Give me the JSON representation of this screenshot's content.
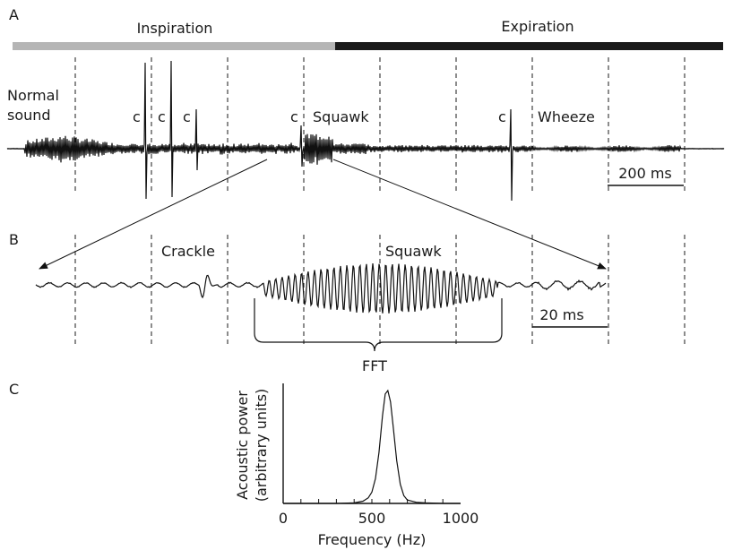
{
  "panels": {
    "a": "A",
    "b": "B",
    "c": "C"
  },
  "phases": {
    "inspiration": {
      "label": "Inspiration",
      "color": "#b5b5b5"
    },
    "expiration": {
      "label": "Expiration",
      "color": "#1a1a1a"
    }
  },
  "labels_a": {
    "normal_line1": "Normal",
    "normal_line2": "sound",
    "crackle_marks": [
      "c",
      "c",
      "c",
      "c",
      "c"
    ],
    "squawk": "Squawk",
    "wheeze": "Wheeze"
  },
  "scalebar_a": "200 ms",
  "labels_b": {
    "crackle": "Crackle",
    "squawk": "Squawk"
  },
  "scalebar_b": "20 ms",
  "fft_label": "FFT",
  "chart_data": {
    "type": "line",
    "xlabel": "Frequency (Hz)",
    "ylabel_line1": "Acoustic power",
    "ylabel_line2": "(arbitrary units)",
    "xlim": [
      0,
      1000
    ],
    "xticks": [
      0,
      500,
      1000
    ],
    "xtick_labels": [
      "0",
      "500",
      "1000"
    ],
    "series": [
      {
        "x": [
          0,
          100,
          200,
          300,
          400,
          450,
          480,
          500,
          520,
          540,
          560,
          575,
          590,
          605,
          620,
          640,
          660,
          680,
          700,
          750,
          800,
          900,
          1000
        ],
        "y": [
          0,
          0,
          0,
          0,
          0.005,
          0.02,
          0.05,
          0.1,
          0.22,
          0.45,
          0.78,
          0.97,
          1.0,
          0.9,
          0.68,
          0.38,
          0.17,
          0.07,
          0.03,
          0.01,
          0.005,
          0,
          0
        ]
      }
    ]
  }
}
